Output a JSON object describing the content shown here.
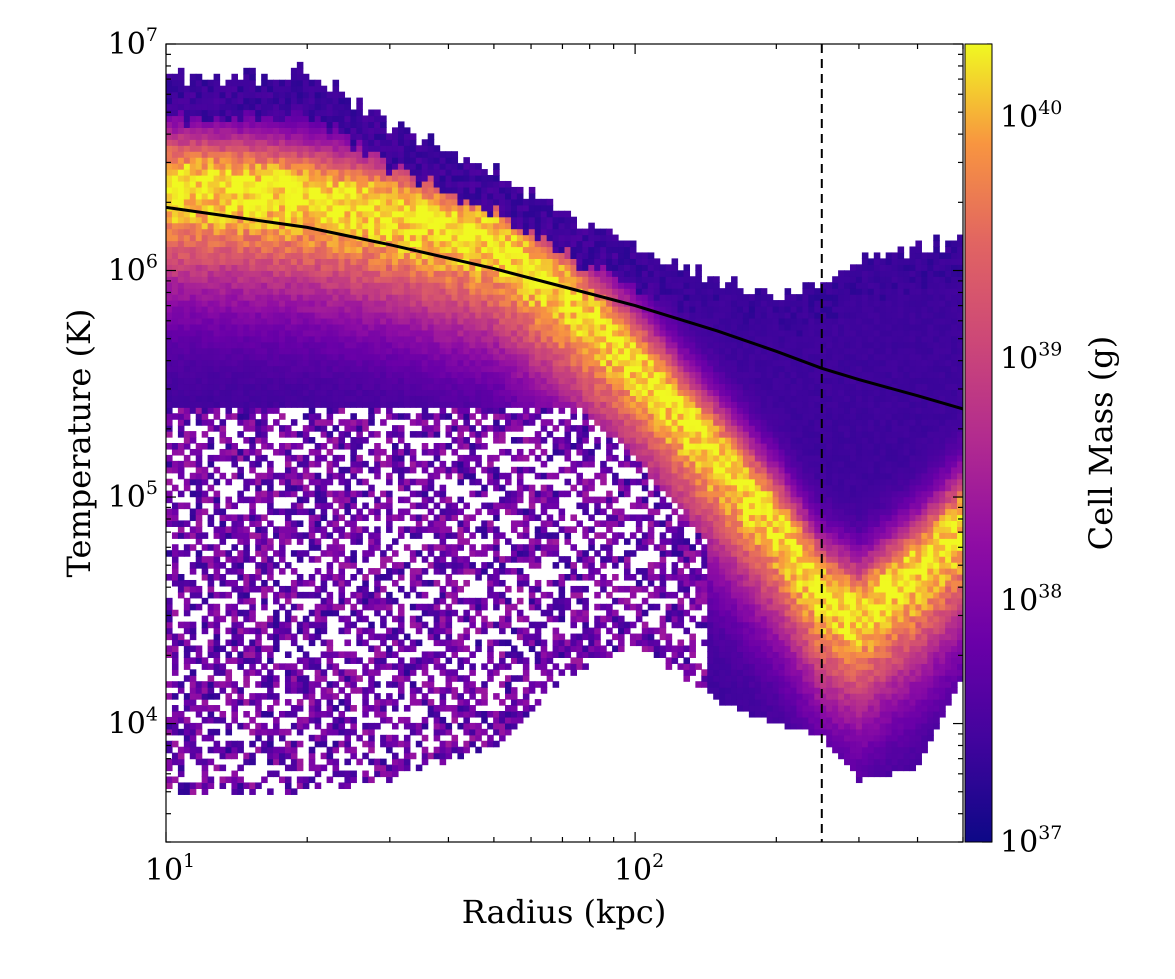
{
  "chart_data": {
    "type": "heatmap",
    "title": "",
    "xlabel": "Radius  (kpc)",
    "ylabel": "Temperature  (K)",
    "x_scale": "log",
    "y_scale": "log",
    "xlim": [
      10,
      500
    ],
    "ylim": [
      3000,
      10000000
    ],
    "x_ticks": [
      {
        "base": "10",
        "exp": "1",
        "value": 10
      },
      {
        "base": "10",
        "exp": "2",
        "value": 100
      }
    ],
    "y_ticks": [
      {
        "base": "10",
        "exp": "4",
        "value": 10000
      },
      {
        "base": "10",
        "exp": "5",
        "value": 100000
      },
      {
        "base": "10",
        "exp": "6",
        "value": 1000000
      },
      {
        "base": "10",
        "exp": "7",
        "value": 10000000
      }
    ],
    "colorbar": {
      "label": "Cell Mass  (g)",
      "scale": "log",
      "colormap": "plasma",
      "range": [
        1e+37,
        2e+40
      ],
      "ticks": [
        {
          "base": "10",
          "exp": "37",
          "value": 1e+37
        },
        {
          "base": "10",
          "exp": "38",
          "value": 1e+38
        },
        {
          "base": "10",
          "exp": "39",
          "value": 1e+39
        },
        {
          "base": "10",
          "exp": "40",
          "value": 1e+40
        }
      ]
    },
    "mean_profile": {
      "name": "mean temperature profile",
      "color": "#000000",
      "x": [
        10,
        20,
        30,
        50,
        70,
        100,
        150,
        200,
        250,
        300,
        400,
        500
      ],
      "y": [
        1900000,
        1550000,
        1300000,
        1020000,
        850000,
        700000,
        540000,
        440000,
        370000,
        330000,
        280000,
        245000
      ]
    },
    "virial_radius": {
      "x": 250,
      "style": "dashed",
      "color": "#000000"
    },
    "distribution": {
      "description_of_ridge": "peak mass density",
      "ridge_x": [
        10,
        15,
        20,
        30,
        50,
        70,
        100,
        150,
        200,
        250,
        300,
        400,
        500
      ],
      "ridge_log10T": [
        6.4,
        6.38,
        6.35,
        6.28,
        6.15,
        5.92,
        5.62,
        5.2,
        4.9,
        4.6,
        4.5,
        4.7,
        4.9
      ],
      "upper_edge_log10T": [
        6.85,
        6.85,
        6.88,
        6.65,
        6.45,
        6.25,
        6.1,
        5.95,
        5.9,
        5.95,
        6.05,
        6.1,
        6.12
      ],
      "lower_edge_log10T": [
        3.7,
        3.7,
        3.7,
        3.75,
        3.9,
        4.2,
        4.35,
        4.1,
        4.0,
        3.95,
        3.75,
        3.8,
        4.2
      ]
    }
  }
}
